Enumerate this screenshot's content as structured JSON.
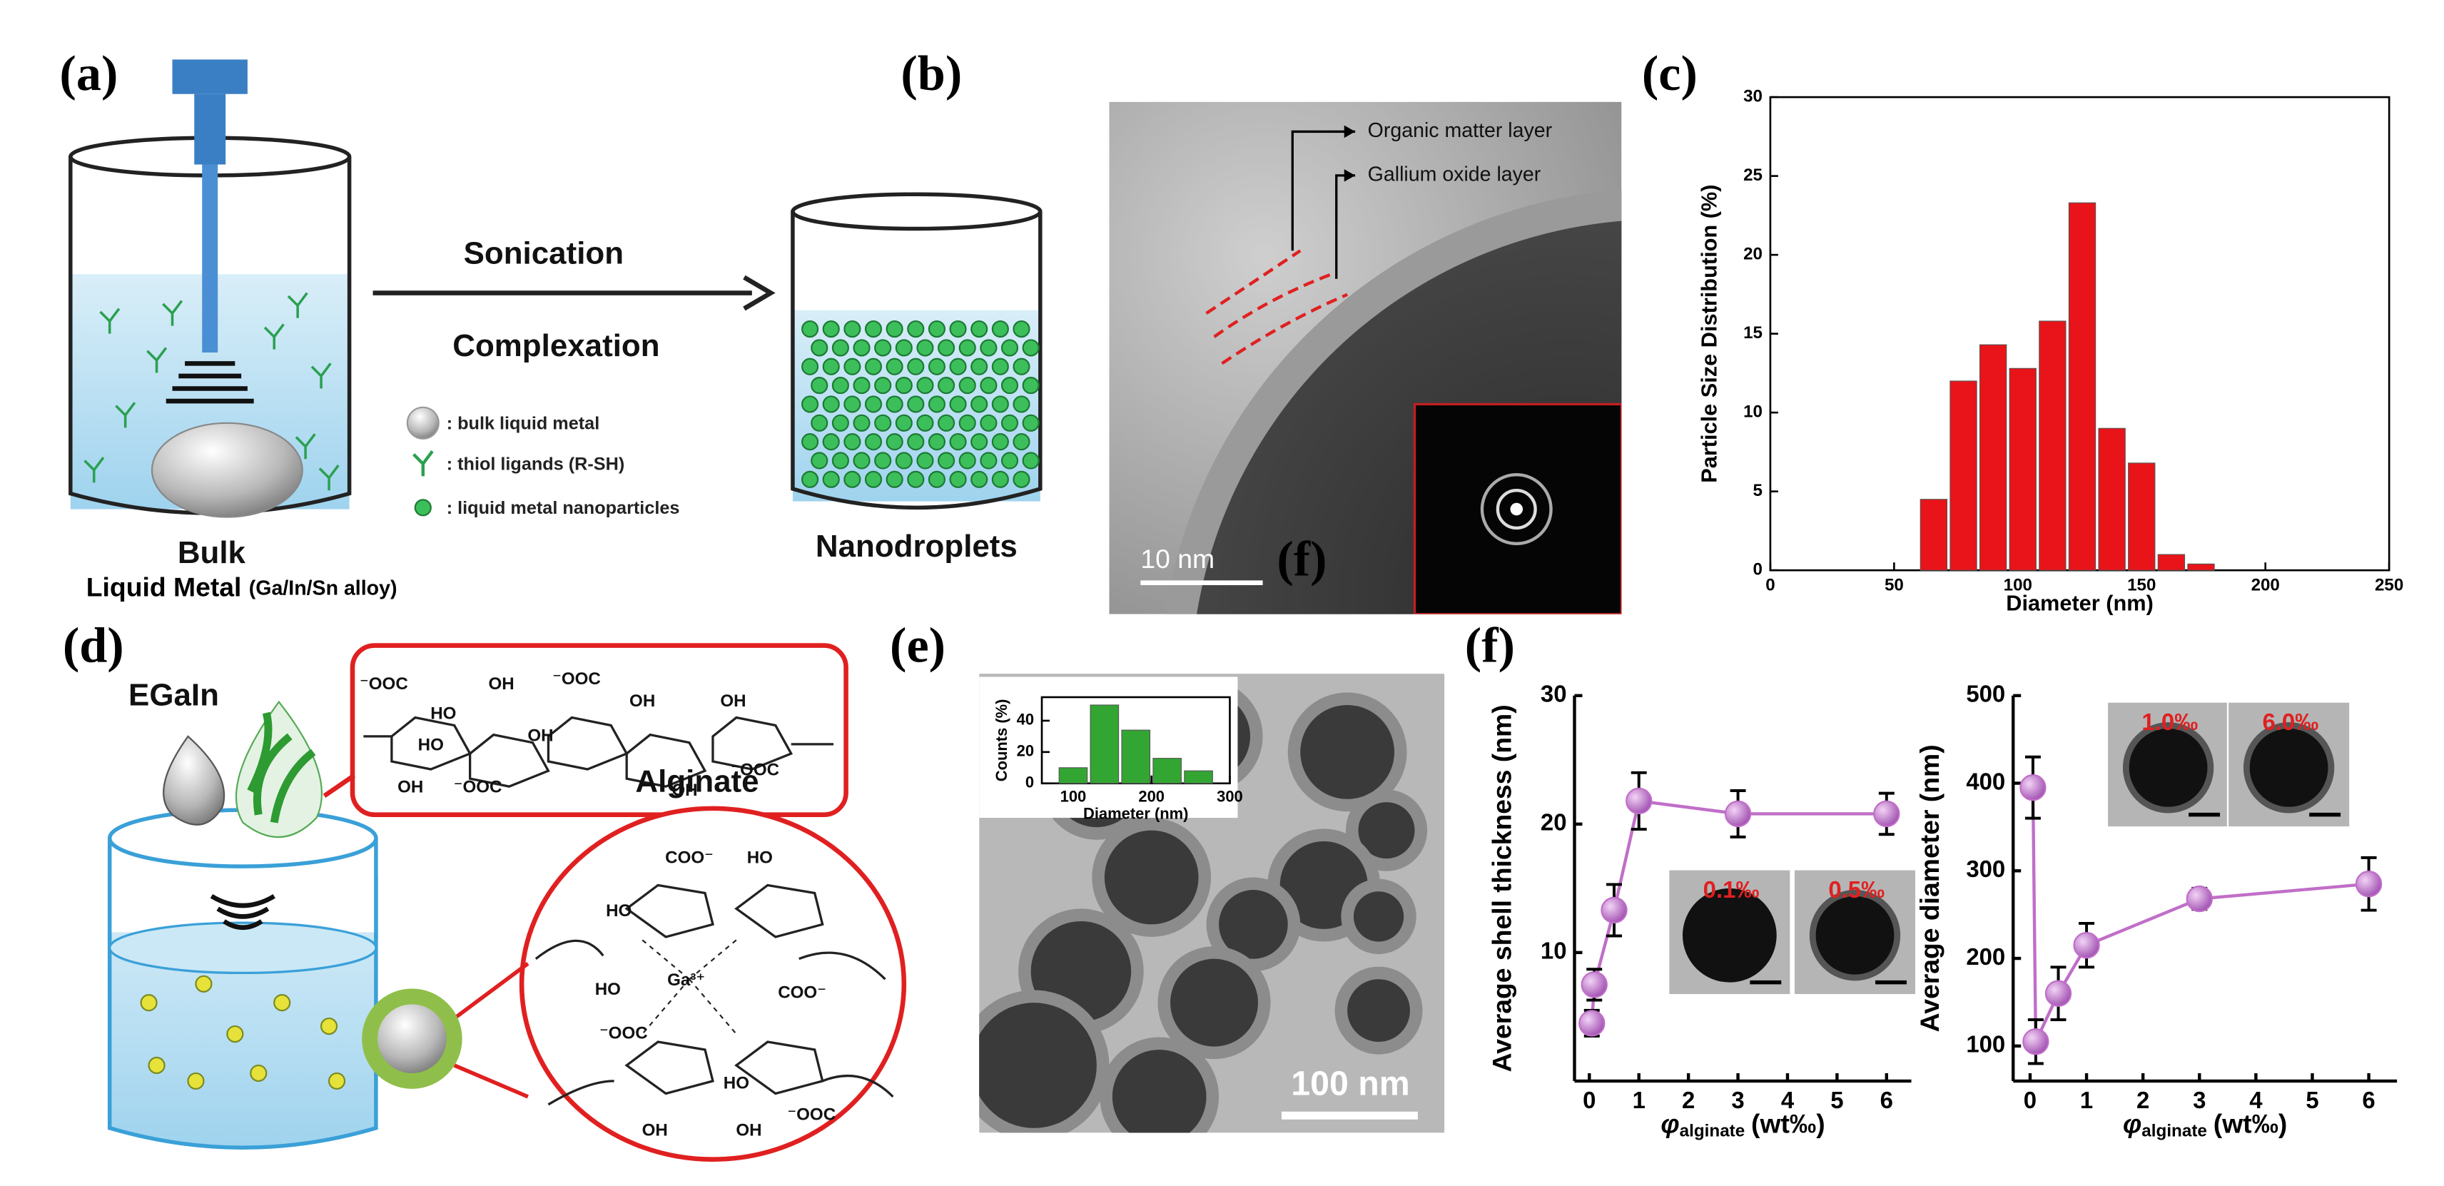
{
  "panel_labels": [
    "(a)",
    "(b)",
    "(c)",
    "(d)",
    "(e)",
    "(f)"
  ],
  "panel_a": {
    "step_1": "Sonication",
    "step_2": "Complexation",
    "legend": [
      ": bulk liquid metal",
      ": thiol ligands (R-SH)",
      ": liquid metal nanoparticles"
    ],
    "start_label": "Bulk",
    "start_sublabel": "Liquid Metal",
    "start_alloy": "(Ga/In/Sn alloy)",
    "end_label": "Nanodroplets"
  },
  "panel_b": {
    "layers": [
      "Organic matter layer",
      "Gallium oxide layer"
    ],
    "scale_bar": "10 nm",
    "overlay_label": "(f)"
  },
  "panel_d": {
    "material": "EGaIn",
    "polymer": "Alginate",
    "alginate_groups": [
      "⁻OOC",
      "OH",
      "⁻OOC",
      "HO",
      "OH",
      "HO",
      "OH",
      "OH",
      "⁻OOC",
      "OH",
      "OH",
      "⁻OOC"
    ],
    "complex_groups": [
      "COO⁻",
      "HO",
      "HO",
      "HO",
      "Ga³⁺",
      "COO⁻",
      "⁻OOC",
      "HO",
      "OH",
      "OH",
      "⁻OOC"
    ]
  },
  "panel_e": {
    "scale_bar": "100 nm"
  },
  "panel_f": {
    "inset_labels": [
      "0.1‰",
      "0.5‰",
      "1.0‰",
      "6.0‰"
    ]
  },
  "chart_data": [
    {
      "type": "histogram",
      "xlabel": "Diameter (nm)",
      "ylabel": "Particle Size Distribution (%)",
      "bins": [
        60,
        72,
        84,
        96,
        108,
        120,
        132,
        144,
        156,
        168,
        180
      ],
      "values": [
        4.5,
        12,
        14.3,
        12.8,
        15.8,
        23.3,
        9,
        6.8,
        1,
        0.4
      ],
      "color": "#e8141a",
      "xlim": [
        0,
        250
      ],
      "xticks": [
        0,
        50,
        100,
        150,
        200,
        250
      ],
      "ylim": [
        0,
        30
      ],
      "yticks": [
        0,
        5,
        10,
        15,
        20,
        25,
        30
      ]
    },
    {
      "type": "histogram",
      "xlabel": "Diameter (nm)",
      "ylabel": "Counts (%)",
      "bins": [
        80,
        120,
        160,
        200,
        240,
        280
      ],
      "values": [
        10,
        50,
        34,
        16,
        8
      ],
      "color": "#33a532",
      "xlim": [
        60,
        300
      ],
      "xticks": [
        100,
        200,
        300
      ],
      "ylim": [
        0,
        55
      ],
      "yticks": [
        0,
        20,
        40
      ]
    },
    {
      "type": "line",
      "xlabel_symbol": "φ",
      "xlabel_subscript": "alginate",
      "xlabel_unit": "(wt‰)",
      "ylabel": "Average shell thickness (nm)",
      "x": [
        0.05,
        0.1,
        0.5,
        1,
        3,
        6
      ],
      "values": [
        4.5,
        7.5,
        13.3,
        21.8,
        20.8,
        20.8
      ],
      "errors": [
        1,
        1.2,
        2,
        2.2,
        1.8,
        1.6
      ],
      "color": "#c06ec8",
      "xlim": [
        -0.3,
        6.5
      ],
      "xticks": [
        0,
        1,
        2,
        3,
        4,
        5,
        6
      ],
      "ylim": [
        0,
        30
      ],
      "yticks": [
        10,
        20,
        30
      ]
    },
    {
      "type": "line",
      "xlabel_symbol": "φ",
      "xlabel_subscript": "alginate",
      "xlabel_unit": "(wt‰)",
      "ylabel": "Average diameter (nm)",
      "x": [
        0.05,
        0.1,
        0.5,
        1,
        3,
        6
      ],
      "values": [
        395,
        105,
        160,
        215,
        268,
        285
      ],
      "errors": [
        35,
        25,
        30,
        25,
        12,
        30
      ],
      "color": "#c06ec8",
      "xlim": [
        -0.3,
        6.5
      ],
      "xticks": [
        0,
        1,
        2,
        3,
        4,
        5,
        6
      ],
      "ylim": [
        60,
        500
      ],
      "yticks": [
        100,
        200,
        300,
        400,
        500
      ]
    }
  ]
}
